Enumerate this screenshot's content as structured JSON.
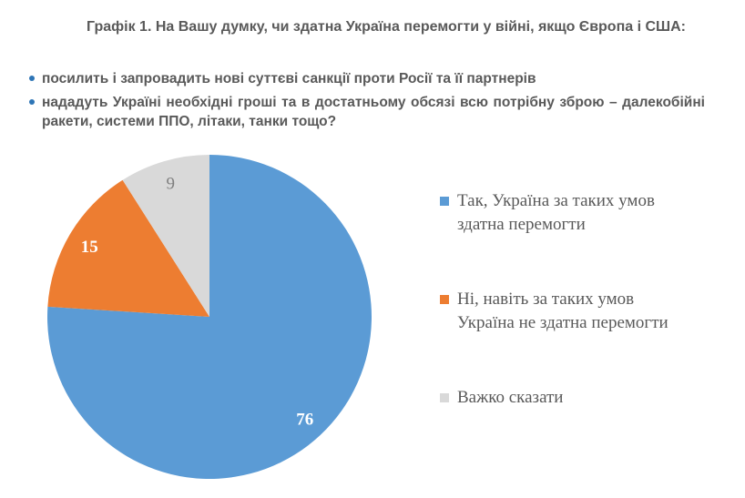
{
  "page": {
    "title": "Графік 1. На Вашу думку, чи здатна Україна перемогти у війні, якщо Європа і США:",
    "bullets": [
      "посилить і запровадить нові суттєві санкції проти Росії та її партнерів",
      "нададуть Україні необхідні гроші та в достатньому обсязі всю потрібну зброю – далекобійні ракети, системи ППО, літаки, танки тощо?"
    ],
    "colors": {
      "text": "#595959",
      "bullet_dot": "#2E75B6",
      "background": "#FFFFFF"
    }
  },
  "chart_data": {
    "type": "pie",
    "title": "",
    "values": [
      76,
      15,
      9
    ],
    "labels": [
      "Так, Україна за таких умов здатна перемогти",
      "Ні, навіть за таких умов Україна не здатна перемогти",
      "Важко сказати"
    ],
    "colors": [
      "#5B9BD5",
      "#ED7D31",
      "#D9D9D9"
    ],
    "data_labels": [
      "76",
      "15",
      "9"
    ],
    "data_label_colors": [
      "#FFFFFF",
      "#FFFFFF",
      "#7F7F7F"
    ],
    "data_label_bold": [
      true,
      true,
      false
    ],
    "start_angle_deg": 0,
    "direction": "clockwise",
    "legend_position": "right"
  }
}
